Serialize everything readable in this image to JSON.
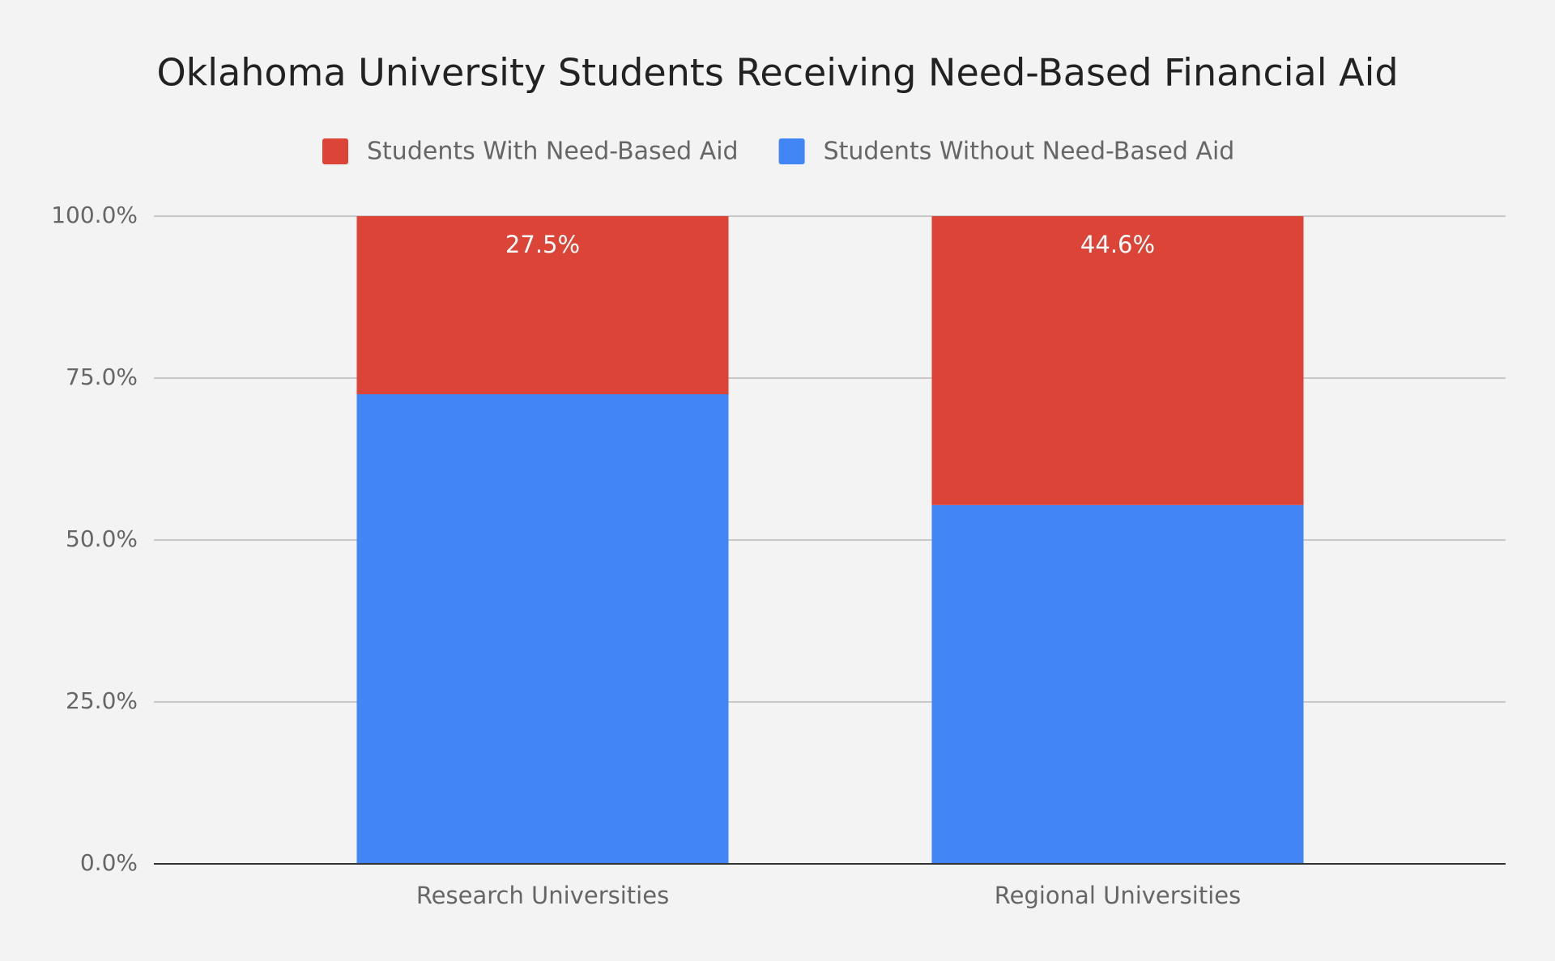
{
  "chart_data": {
    "type": "stacked-bar",
    "title": "Oklahoma University Students Receiving Need-Based Financial Aid",
    "categories": [
      "Research Universities",
      "Regional Universities"
    ],
    "series": [
      {
        "name": "Students With Need-Based Aid",
        "color": "#db4437",
        "values": [
          27.5,
          44.6
        ],
        "value_labels": [
          "27.5%",
          "44.6%"
        ]
      },
      {
        "name": "Students Without Need-Based Aid",
        "color": "#4285f4",
        "values": [
          72.5,
          55.4
        ]
      }
    ],
    "ylim": [
      0,
      100
    ],
    "yticks": [
      {
        "value": 0,
        "label": "0.0%"
      },
      {
        "value": 25,
        "label": "25.0%"
      },
      {
        "value": 50,
        "label": "50.0%"
      },
      {
        "value": 75,
        "label": "75.0%"
      },
      {
        "value": 100,
        "label": "100.0%"
      }
    ],
    "grid": true,
    "legend": "top"
  }
}
